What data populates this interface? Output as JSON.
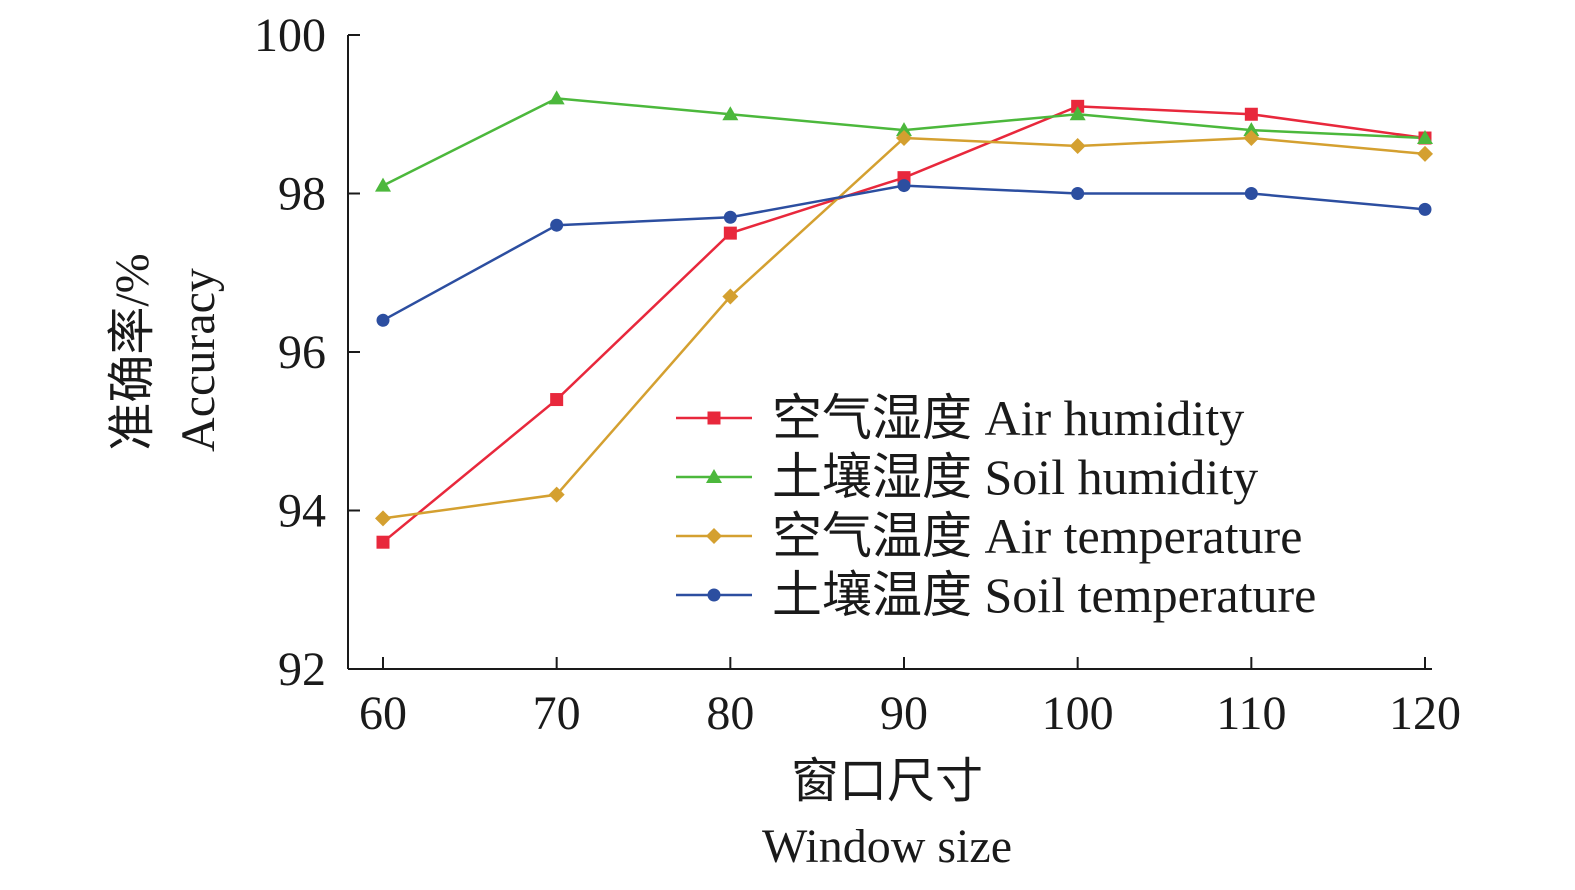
{
  "chart_data": {
    "type": "line",
    "x": [
      60,
      70,
      80,
      90,
      100,
      110,
      120
    ],
    "xticks": [
      "60",
      "70",
      "80",
      "90",
      "100",
      "110",
      "120"
    ],
    "yticks": [
      "92",
      "94",
      "96",
      "98",
      "100"
    ],
    "xlim": [
      58,
      120
    ],
    "ylim": [
      92,
      100
    ],
    "xlabel": "窗口尺寸",
    "xlabel_en": "Window size",
    "ylabel": "准确率/%",
    "ylabel_en": "Accuracy",
    "grid": false,
    "legend_position": "lower-right",
    "series": [
      {
        "name": "空气湿度 Air humidity",
        "color": "#e8283c",
        "marker": "square",
        "values": [
          93.6,
          95.4,
          97.5,
          98.2,
          99.1,
          99.0,
          98.7
        ]
      },
      {
        "name": "土壤湿度 Soil humidity",
        "color": "#4cb83c",
        "marker": "triangle",
        "values": [
          98.1,
          99.2,
          99.0,
          98.8,
          99.0,
          98.8,
          98.7
        ]
      },
      {
        "name": "空气温度 Air temperature",
        "color": "#d4a030",
        "marker": "diamond",
        "values": [
          93.9,
          94.2,
          96.7,
          98.7,
          98.6,
          98.7,
          98.5
        ]
      },
      {
        "name": "土壤温度 Soil temperature",
        "color": "#2c4ea0",
        "marker": "circle",
        "values": [
          96.4,
          97.6,
          97.7,
          98.1,
          98.0,
          98.0,
          97.8
        ]
      }
    ]
  }
}
